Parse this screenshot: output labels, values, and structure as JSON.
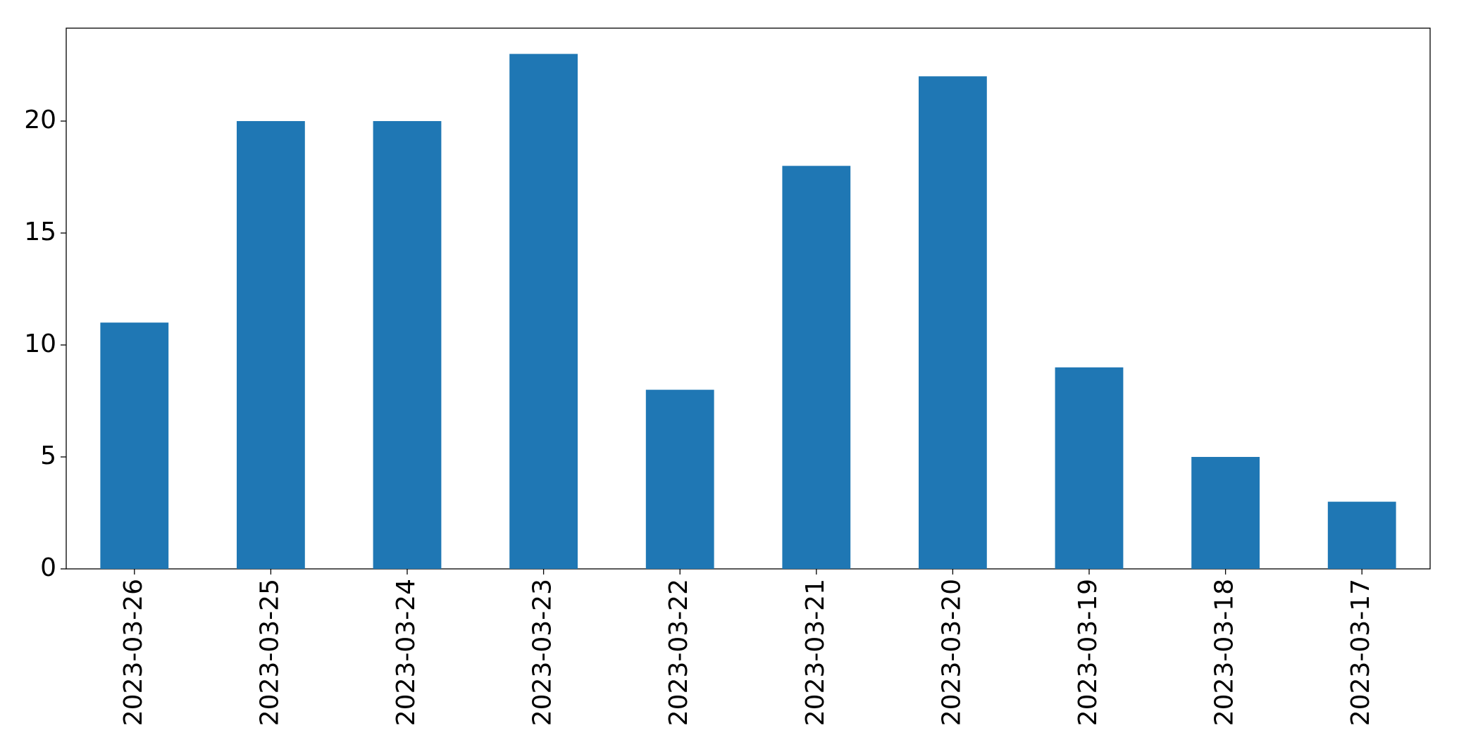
{
  "chart_data": {
    "type": "bar",
    "categories": [
      "2023-03-26",
      "2023-03-25",
      "2023-03-24",
      "2023-03-23",
      "2023-03-22",
      "2023-03-21",
      "2023-03-20",
      "2023-03-19",
      "2023-03-18",
      "2023-03-17"
    ],
    "values": [
      11,
      20,
      20,
      23,
      8,
      18,
      22,
      9,
      5,
      3
    ],
    "color": "#1f77b4",
    "ylim": [
      0,
      24.15
    ],
    "yticks": [
      0,
      5,
      10,
      15,
      20
    ],
    "grid": false
  }
}
